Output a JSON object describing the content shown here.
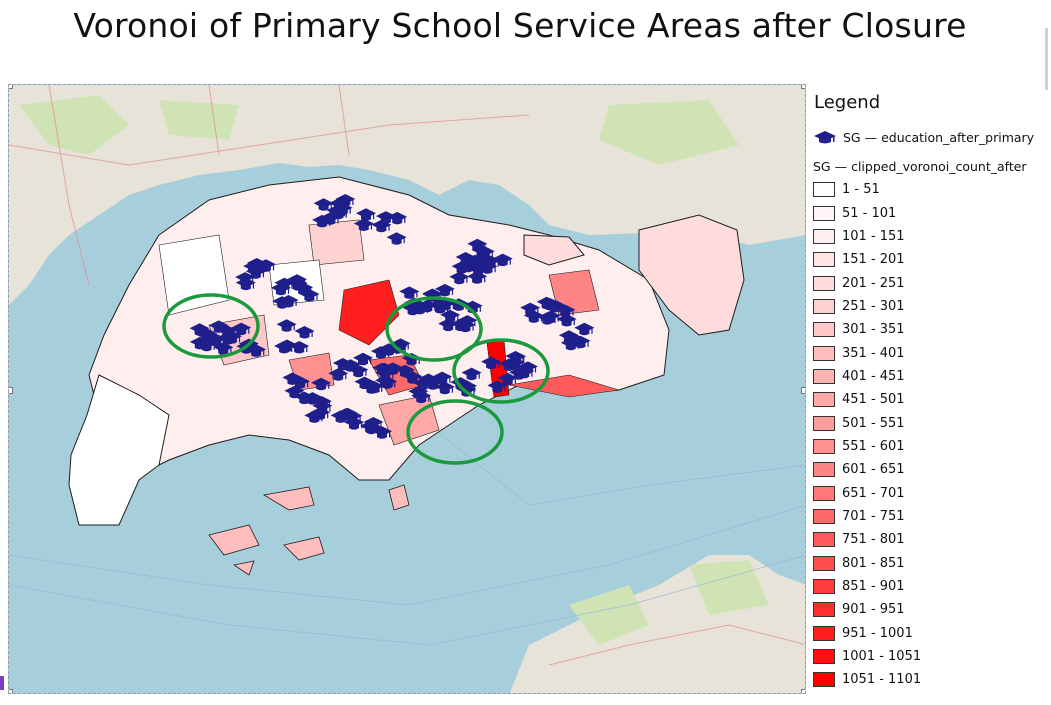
{
  "title": "Voronoi of Primary School Service Areas after Closure",
  "colors": {
    "sea": "#a7cedb",
    "land": "#e9e4da",
    "border": "#1d1d1d",
    "highlight": "#1a9a3c",
    "marker": "#1f1f8c"
  },
  "legend": {
    "heading": "Legend",
    "point_layer": {
      "label": "SG — education_after_primary",
      "icon": "graduation-cap-icon"
    },
    "polygon_layer": {
      "label": "SG — clipped_voronoi_count_after"
    },
    "classes": [
      {
        "label": "1 - 51",
        "color": "#ffffff"
      },
      {
        "label": "51 - 101",
        "color": "#fff7f7"
      },
      {
        "label": "101 - 151",
        "color": "#ffeeee"
      },
      {
        "label": "151 - 201",
        "color": "#ffe5e5"
      },
      {
        "label": "201 - 251",
        "color": "#ffdcdc"
      },
      {
        "label": "251 - 301",
        "color": "#ffd2d2"
      },
      {
        "label": "301 - 351",
        "color": "#ffc8c8"
      },
      {
        "label": "351 - 401",
        "color": "#ffbebe"
      },
      {
        "label": "401 - 451",
        "color": "#ffb3b3"
      },
      {
        "label": "451 - 501",
        "color": "#ffa8a8"
      },
      {
        "label": "501 - 551",
        "color": "#ff9d9d"
      },
      {
        "label": "551 - 601",
        "color": "#ff9191"
      },
      {
        "label": "601 - 651",
        "color": "#ff8484"
      },
      {
        "label": "651 - 701",
        "color": "#ff7777"
      },
      {
        "label": "701 - 751",
        "color": "#ff6969"
      },
      {
        "label": "751 - 801",
        "color": "#ff5b5b"
      },
      {
        "label": "801 - 851",
        "color": "#ff4c4c"
      },
      {
        "label": "851 - 901",
        "color": "#ff3d3d"
      },
      {
        "label": "901 - 951",
        "color": "#ff2e2e"
      },
      {
        "label": "951 - 1001",
        "color": "#ff1f1f"
      },
      {
        "label": "1001 - 1051",
        "color": "#ff0f0f"
      },
      {
        "label": "1051 - 1101",
        "color": "#ff0000"
      }
    ]
  }
}
